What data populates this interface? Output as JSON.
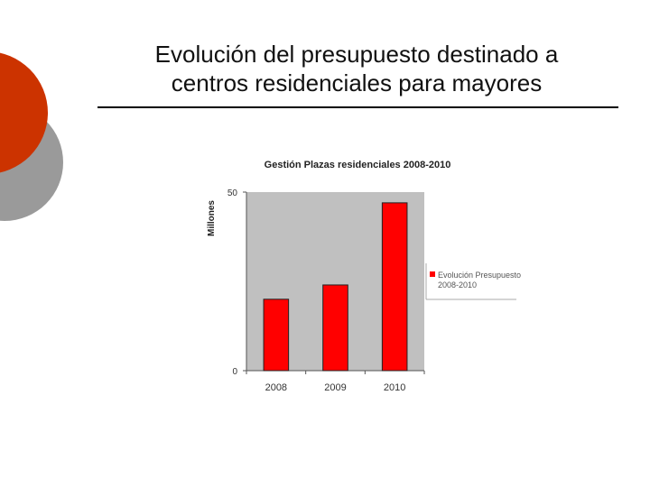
{
  "slide": {
    "title_line1": "Evolución del presupuesto destinado a",
    "title_line2": "centros residenciales para mayores"
  },
  "chart_data": {
    "type": "bar",
    "title": "Gestión Plazas residenciales 2008-2010",
    "xlabel": "",
    "ylabel": "Millones",
    "categories": [
      "2008",
      "2009",
      "2010"
    ],
    "series": [
      {
        "name": "Evolución Presupuesto 2008-2010",
        "values": [
          20,
          24,
          47
        ]
      }
    ],
    "ylim": [
      0,
      50
    ],
    "yticks": [
      "0",
      "50"
    ],
    "legend": "right",
    "colors": {
      "bar": "#ff0000",
      "plot_bg": "#c0c0c0"
    }
  }
}
